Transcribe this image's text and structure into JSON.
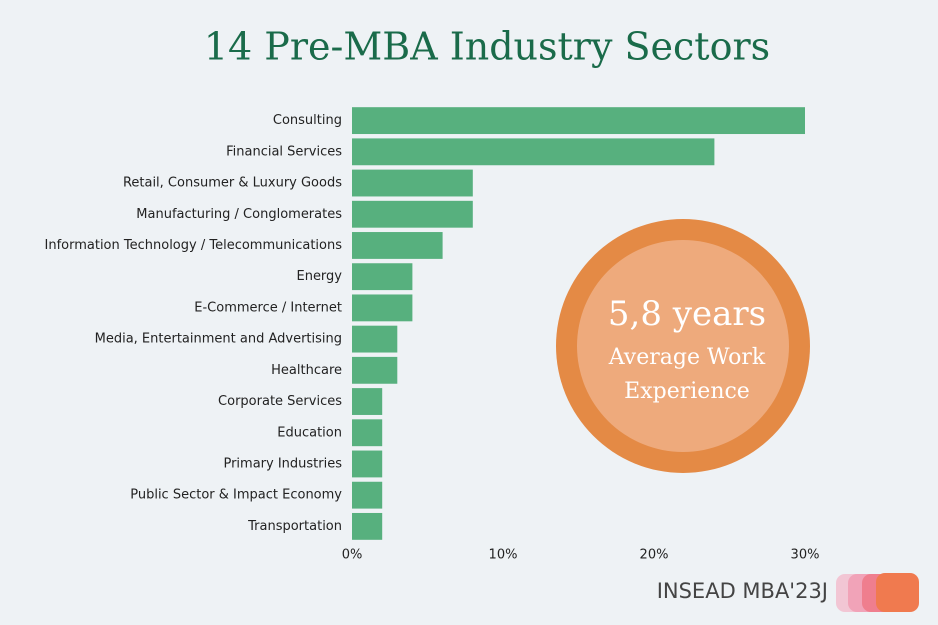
{
  "chart_data": {
    "type": "hbar",
    "title": "14 Pre-MBA Industry Sectors",
    "categories": [
      "Consulting",
      "Financial Services",
      "Retail, Consumer & Luxury Goods",
      "Manufacturing / Conglomerates",
      "Information Technology / Telecommunications",
      "Energy",
      "E-Commerce / Internet",
      "Media, Entertainment and Advertising",
      "Healthcare",
      "Corporate Services",
      "Education",
      "Primary Industries",
      "Public Sector & Impact Economy",
      "Transportation"
    ],
    "values": [
      30,
      24,
      8,
      8,
      6,
      4,
      4,
      3,
      3,
      2,
      2,
      2,
      2,
      2
    ],
    "color": "#57b07e",
    "xlim": [
      0,
      30
    ],
    "xticks": [
      {
        "value": 0,
        "label": "0%"
      },
      {
        "value": 10,
        "label": "10%"
      },
      {
        "value": 20,
        "label": "20%"
      },
      {
        "value": 30,
        "label": "30%"
      }
    ],
    "annotation": {
      "headline": "5,8 years",
      "lines": [
        "Average Work",
        "Experience"
      ]
    },
    "footer": "INSEAD MBA'23J"
  }
}
